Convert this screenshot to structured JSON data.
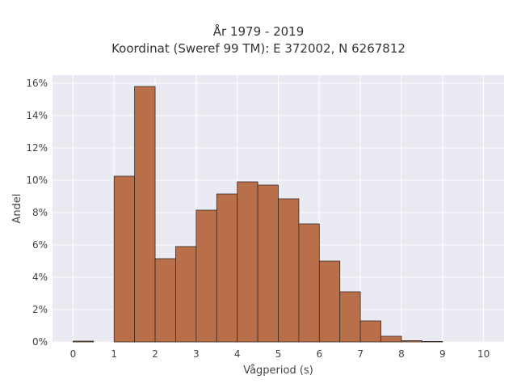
{
  "chart_data": {
    "type": "bar",
    "title_lines": [
      "År 1979 - 2019",
      "Koordinat (Sweref 99 TM): E 372002, N 6267812"
    ],
    "xlabel": "Vågperiod (s)",
    "ylabel": "Andel",
    "bin_width": 0.5,
    "bins": [
      {
        "x0": 0.0,
        "value": 0.05
      },
      {
        "x0": 0.5,
        "value": 0.0
      },
      {
        "x0": 1.0,
        "value": 10.25
      },
      {
        "x0": 1.5,
        "value": 15.8
      },
      {
        "x0": 2.0,
        "value": 5.15
      },
      {
        "x0": 2.5,
        "value": 5.9
      },
      {
        "x0": 3.0,
        "value": 8.15
      },
      {
        "x0": 3.5,
        "value": 9.15
      },
      {
        "x0": 4.0,
        "value": 9.9
      },
      {
        "x0": 4.5,
        "value": 9.7
      },
      {
        "x0": 5.0,
        "value": 8.85
      },
      {
        "x0": 5.5,
        "value": 7.3
      },
      {
        "x0": 6.0,
        "value": 5.0
      },
      {
        "x0": 6.5,
        "value": 3.1
      },
      {
        "x0": 7.0,
        "value": 1.3
      },
      {
        "x0": 7.5,
        "value": 0.35
      },
      {
        "x0": 8.0,
        "value": 0.08
      },
      {
        "x0": 8.5,
        "value": 0.03
      }
    ],
    "xlim": [
      -0.5,
      10.5
    ],
    "ylim": [
      0,
      16.5
    ],
    "xticks": [
      0,
      1,
      2,
      3,
      4,
      5,
      6,
      7,
      8,
      9,
      10
    ],
    "yticks": [
      0,
      2,
      4,
      6,
      8,
      10,
      12,
      14,
      16
    ],
    "ytick_suffix": "%",
    "grid": true,
    "colors": {
      "bar_fill": "#b9704a",
      "bar_edge": "#3a2a20",
      "plot_bg": "#eaeaf2",
      "grid": "#ffffff"
    }
  }
}
